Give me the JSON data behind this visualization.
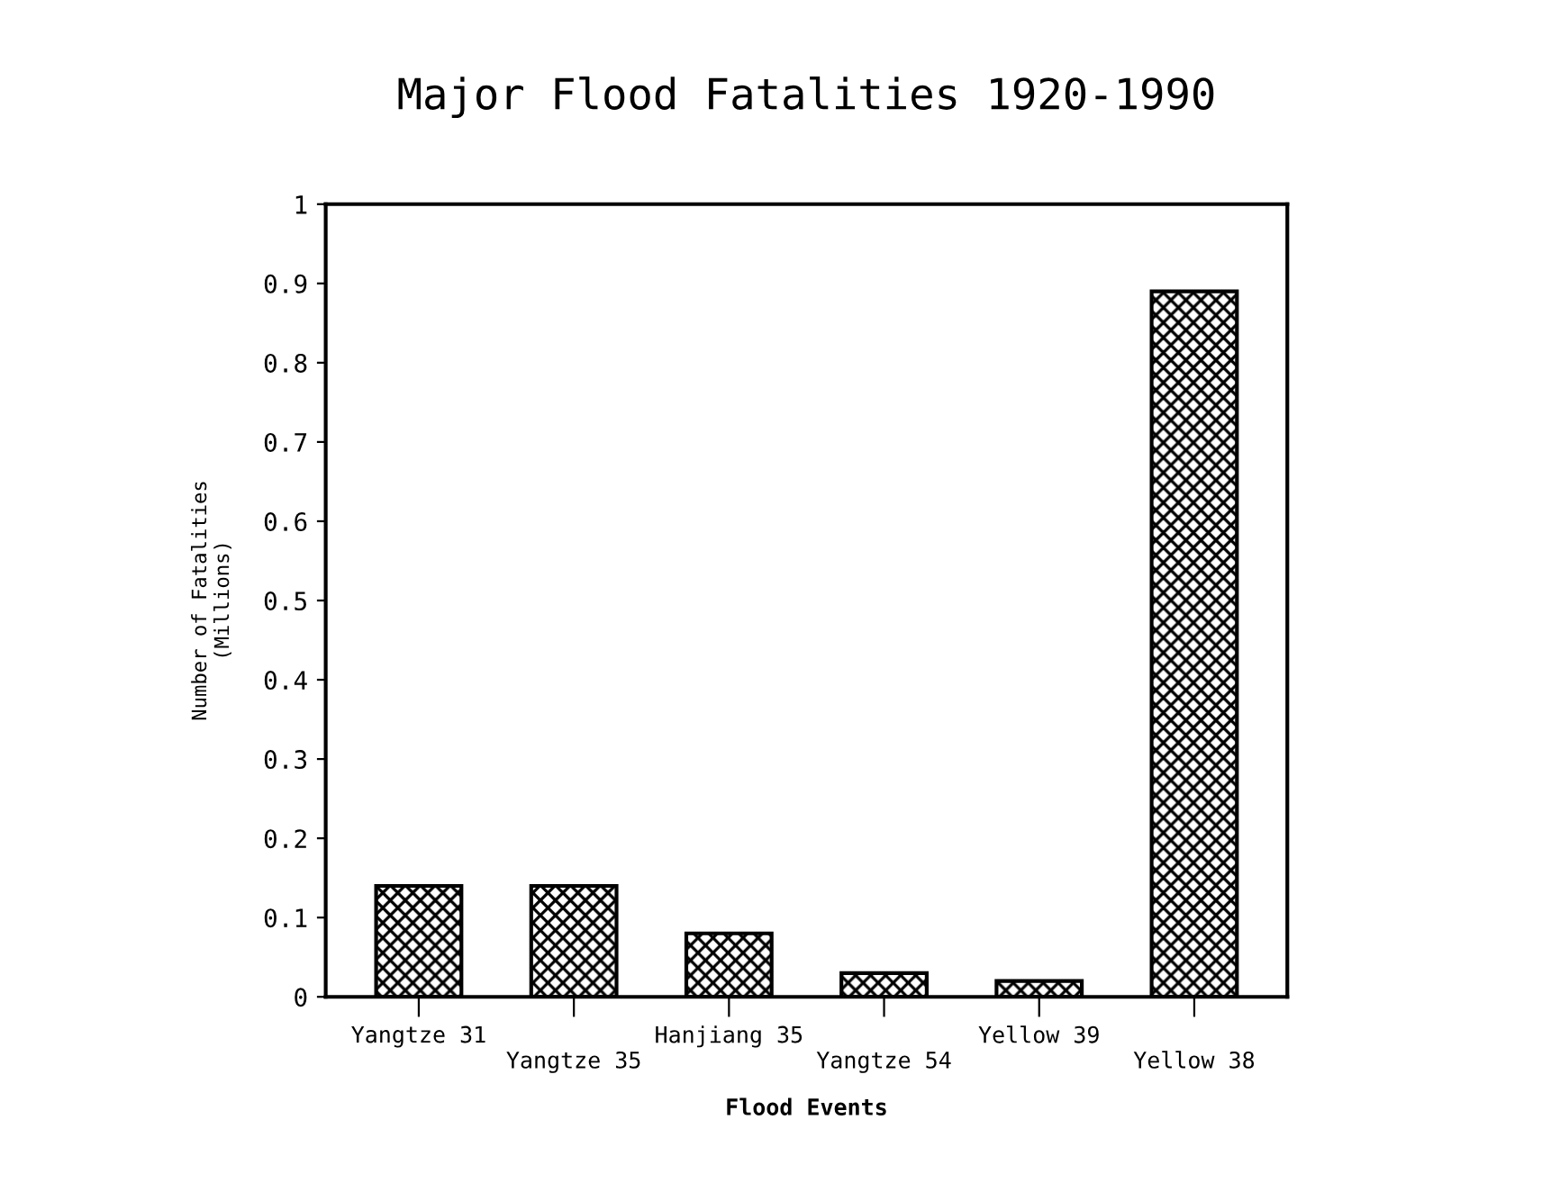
{
  "chart_data": {
    "type": "bar",
    "title": "Major Flood Fatalities 1920-1990",
    "xlabel": "Flood Events",
    "ylabel": "Number of Fatalities\n(Millions)",
    "categories": [
      "Yangtze 31",
      "Yangtze 35",
      "Hanjiang 35",
      "Yangtze 54",
      "Yellow 39",
      "Yellow 38"
    ],
    "values": [
      0.14,
      0.14,
      0.08,
      0.03,
      0.02,
      0.89
    ],
    "color": "#000000",
    "ylim": [
      0,
      1
    ],
    "yticks": [
      0,
      0.1,
      0.2,
      0.3,
      0.4,
      0.5,
      0.6,
      0.7,
      0.8,
      0.9,
      1
    ],
    "grid": false
  }
}
